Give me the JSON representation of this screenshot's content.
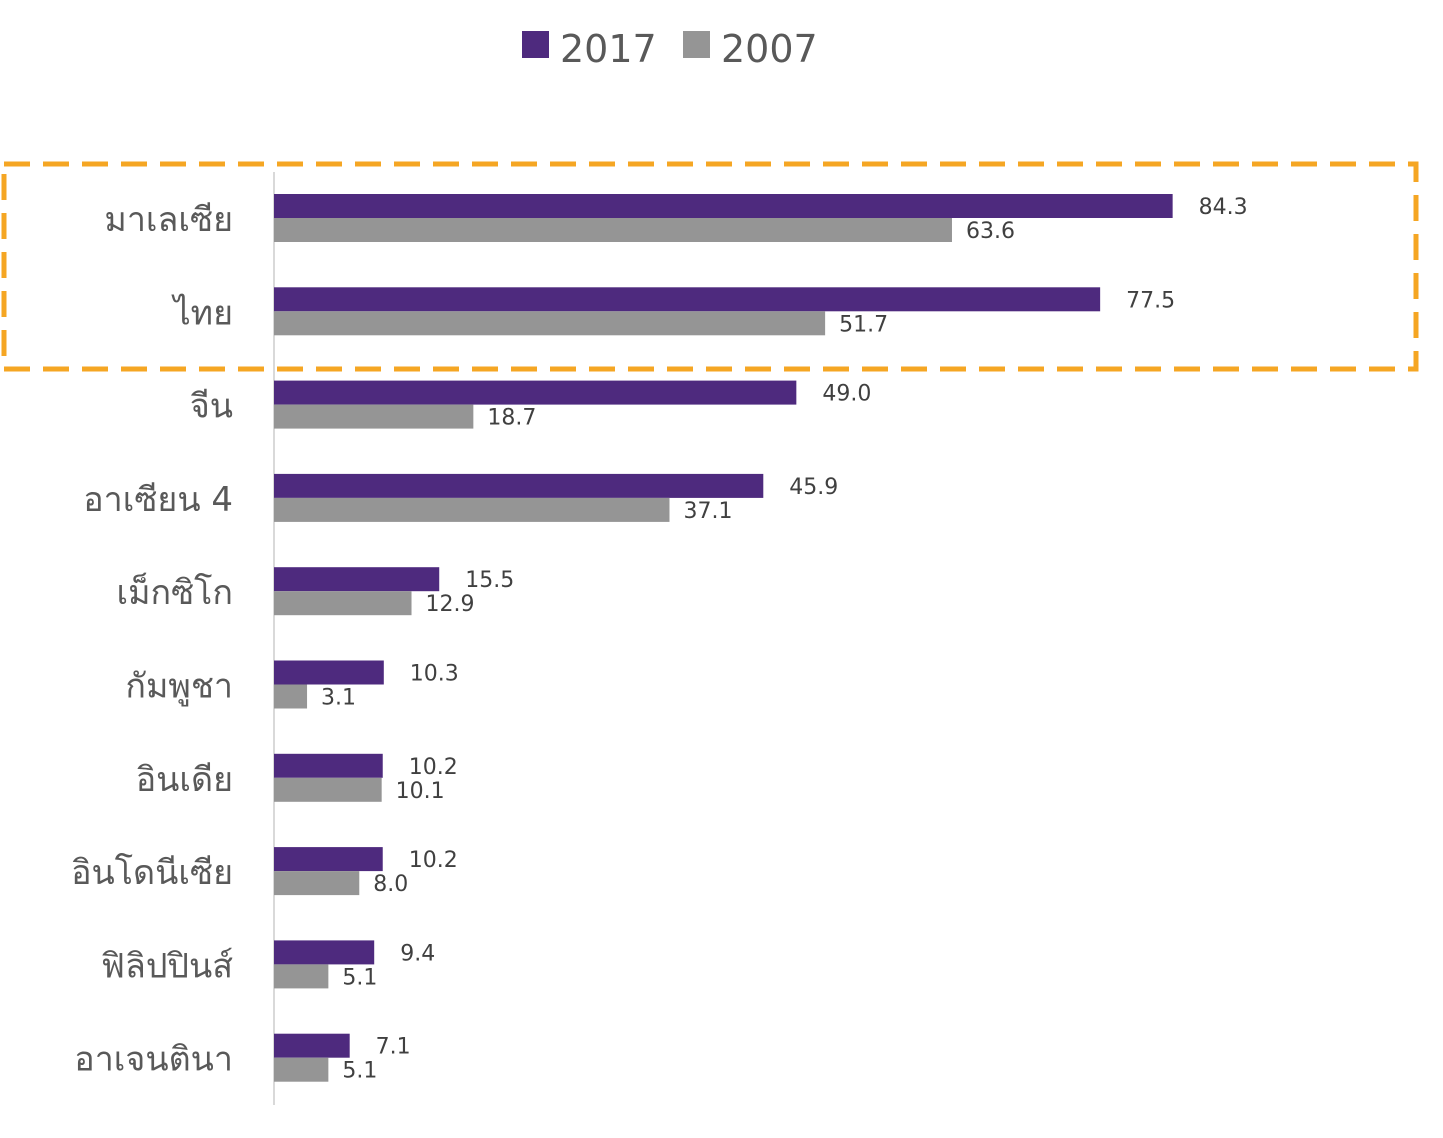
{
  "chart_data": {
    "type": "bar",
    "orientation": "horizontal",
    "title": "",
    "xlabel": "",
    "ylabel": "",
    "xlim": [
      0,
      100
    ],
    "grid": false,
    "legend_position": "top-center",
    "categories": [
      "มาเลเซีย",
      "ไทย",
      "จีน",
      "อาเซียน 4",
      "เม็กซิโก",
      "กัมพูชา",
      "อินเดีย",
      "อินโดนีเซีย",
      "ฟิลิปปินส์",
      "อาเจนตินา"
    ],
    "series": [
      {
        "name": "2017",
        "color": "#4e2a7e",
        "values": [
          84.3,
          77.5,
          49.0,
          45.9,
          15.5,
          10.3,
          10.2,
          10.2,
          9.4,
          7.1
        ],
        "labels": [
          "84.3",
          "77.5",
          "49.0",
          "45.9",
          "15.5",
          "10.3",
          "10.2",
          "10.2",
          "9.4",
          "7.1"
        ]
      },
      {
        "name": "2007",
        "color": "#959595",
        "values": [
          63.6,
          51.7,
          18.7,
          37.1,
          12.9,
          3.1,
          10.1,
          8.0,
          5.1,
          5.1
        ],
        "labels": [
          "63.6",
          "51.7",
          "18.7",
          "37.1",
          "12.9",
          "3.1",
          "10.1",
          "8.0",
          "5.1",
          "5.1"
        ]
      }
    ],
    "highlight": {
      "categories": [
        "มาเลเซีย",
        "ไทย"
      ],
      "color": "#f5a623",
      "style": "dashed"
    },
    "axis_color": "#d9d9d9"
  }
}
